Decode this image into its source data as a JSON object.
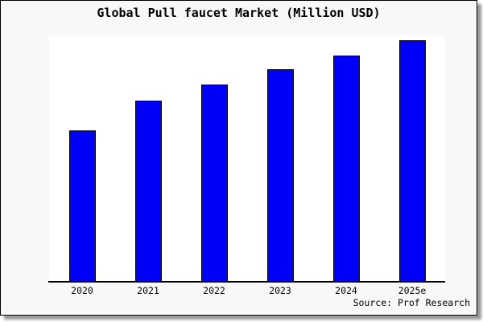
{
  "figure": {
    "title": "Global Pull faucet Market (Million USD)",
    "source": "Source: Prof Research"
  },
  "chart_data": {
    "type": "bar",
    "title": "Global Pull faucet Market (Million USD)",
    "categories": [
      "2020",
      "2021",
      "2022",
      "2023",
      "2024",
      "2025e"
    ],
    "values": [
      62.5,
      75,
      81.5,
      88,
      93.5,
      100
    ],
    "value_scale_note": "No y-axis, gridlines or data labels are shown; values are relative market size estimated from bar heights, indexed to 2025e = 100",
    "xlabel": "",
    "ylabel": "",
    "legend": "none",
    "grid": false,
    "source": "Source: Prof Research",
    "colors": {
      "bar_fill": "#0000fa",
      "bar_border": "#000000",
      "axis": "#000000",
      "plot_background": "#ffffff",
      "figure_background": "#f8f8f8",
      "text": "#000000"
    }
  }
}
